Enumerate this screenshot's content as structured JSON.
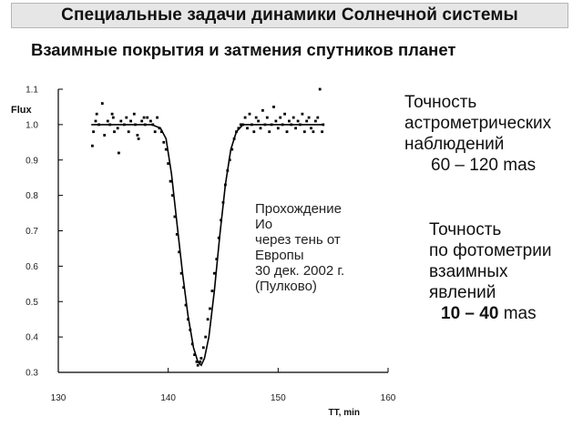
{
  "header": {
    "title": "Специальные задачи динамики Солнечной системы"
  },
  "subtitle": "Взаимные покрытия и затмения спутников планет",
  "notes": {
    "astrometry": {
      "lines": [
        "Точность",
        "астрометрических",
        "наблюдений"
      ],
      "value": "60 – 120  mas"
    },
    "photometry": {
      "lines": [
        "Точность",
        "по фотометрии",
        "взаимных",
        "явлений"
      ],
      "value": "10 – 40",
      "unit": "mas"
    }
  },
  "chart_data": {
    "type": "scatter",
    "title": "",
    "xlabel": "TT, min",
    "ylabel": "Flux",
    "xlim": [
      130,
      160
    ],
    "ylim": [
      0.3,
      1.1
    ],
    "x_ticks": [
      130,
      140,
      150,
      160
    ],
    "y_ticks": [
      0.3,
      0.4,
      0.5,
      0.6,
      0.7,
      0.8,
      0.9,
      1.0,
      1.1
    ],
    "grid": false,
    "annotation_lines": [
      "Прохождение",
      "Ио",
      "через тень от",
      "Европы",
      "30 дек. 2002 г.",
      "(Пулково)"
    ],
    "series": [
      {
        "kind": "points",
        "points": [
          [
            133.1,
            0.94
          ],
          [
            133.2,
            0.98
          ],
          [
            133.4,
            1.01
          ],
          [
            133.5,
            1.03
          ],
          [
            133.7,
            1.0
          ],
          [
            134.0,
            1.06
          ],
          [
            134.2,
            0.97
          ],
          [
            134.5,
            1.01
          ],
          [
            134.7,
            1.0
          ],
          [
            134.9,
            1.03
          ],
          [
            135.0,
            1.02
          ],
          [
            135.1,
            0.98
          ],
          [
            135.4,
            0.99
          ],
          [
            135.5,
            0.92
          ],
          [
            135.7,
            1.01
          ],
          [
            136.0,
            1.0
          ],
          [
            136.2,
            1.02
          ],
          [
            136.4,
            0.98
          ],
          [
            136.6,
            1.01
          ],
          [
            136.9,
            1.03
          ],
          [
            137.0,
            1.0
          ],
          [
            137.2,
            0.97
          ],
          [
            137.3,
            0.96
          ],
          [
            137.6,
            1.01
          ],
          [
            137.8,
            1.02
          ],
          [
            137.9,
            1.0
          ],
          [
            138.1,
            1.02
          ],
          [
            138.4,
            1.01
          ],
          [
            138.6,
            1.0
          ],
          [
            138.8,
            0.98
          ],
          [
            139.0,
            1.02
          ],
          [
            139.2,
            0.99
          ],
          [
            139.4,
            0.98
          ],
          [
            139.6,
            0.95
          ],
          [
            139.8,
            0.93
          ],
          [
            140.0,
            0.89
          ],
          [
            140.2,
            0.84
          ],
          [
            140.4,
            0.8
          ],
          [
            140.6,
            0.74
          ],
          [
            140.8,
            0.69
          ],
          [
            141.0,
            0.64
          ],
          [
            141.2,
            0.58
          ],
          [
            141.4,
            0.54
          ],
          [
            141.6,
            0.49
          ],
          [
            141.8,
            0.45
          ],
          [
            142.0,
            0.42
          ],
          [
            142.2,
            0.38
          ],
          [
            142.4,
            0.35
          ],
          [
            142.6,
            0.33
          ],
          [
            142.7,
            0.32
          ],
          [
            142.9,
            0.33
          ],
          [
            143.0,
            0.34
          ],
          [
            143.2,
            0.37
          ],
          [
            143.4,
            0.4
          ],
          [
            143.6,
            0.45
          ],
          [
            143.8,
            0.48
          ],
          [
            144.0,
            0.53
          ],
          [
            144.2,
            0.58
          ],
          [
            144.4,
            0.62
          ],
          [
            144.6,
            0.68
          ],
          [
            144.8,
            0.73
          ],
          [
            145.0,
            0.78
          ],
          [
            145.2,
            0.83
          ],
          [
            145.4,
            0.87
          ],
          [
            145.6,
            0.9
          ],
          [
            145.8,
            0.93
          ],
          [
            146.0,
            0.96
          ],
          [
            146.2,
            0.98
          ],
          [
            146.4,
            0.99
          ],
          [
            146.6,
            1.0
          ],
          [
            146.8,
            1.0
          ],
          [
            147.0,
            1.02
          ],
          [
            147.2,
            0.99
          ],
          [
            147.4,
            1.03
          ],
          [
            147.6,
            1.0
          ],
          [
            147.8,
            0.98
          ],
          [
            148.0,
            1.02
          ],
          [
            148.2,
            1.01
          ],
          [
            148.4,
            0.99
          ],
          [
            148.6,
            1.04
          ],
          [
            148.8,
            1.0
          ],
          [
            149.0,
            1.02
          ],
          [
            149.2,
            0.98
          ],
          [
            149.4,
            1.0
          ],
          [
            149.6,
            1.05
          ],
          [
            149.8,
            1.01
          ],
          [
            150.0,
            0.99
          ],
          [
            150.2,
            1.02
          ],
          [
            150.4,
            1.0
          ],
          [
            150.6,
            1.03
          ],
          [
            150.8,
            0.98
          ],
          [
            151.0,
            1.01
          ],
          [
            151.2,
            1.0
          ],
          [
            151.4,
            1.02
          ],
          [
            151.6,
            0.99
          ],
          [
            151.8,
            1.01
          ],
          [
            152.0,
            1.0
          ],
          [
            152.2,
            1.03
          ],
          [
            152.4,
            0.98
          ],
          [
            152.6,
            1.01
          ],
          [
            152.8,
            1.02
          ],
          [
            153.0,
            0.99
          ],
          [
            153.2,
            0.98
          ],
          [
            153.4,
            1.01
          ],
          [
            153.6,
            1.02
          ],
          [
            153.8,
            1.1
          ],
          [
            154.0,
            0.98
          ],
          [
            154.1,
            1.0
          ]
        ]
      },
      {
        "kind": "fit_curve",
        "points": [
          [
            133.0,
            1.0
          ],
          [
            138.5,
            1.0
          ],
          [
            139.3,
            0.99
          ],
          [
            139.8,
            0.96
          ],
          [
            140.3,
            0.86
          ],
          [
            140.8,
            0.72
          ],
          [
            141.3,
            0.58
          ],
          [
            141.8,
            0.46
          ],
          [
            142.3,
            0.37
          ],
          [
            142.7,
            0.33
          ],
          [
            143.0,
            0.32
          ],
          [
            143.3,
            0.34
          ],
          [
            143.7,
            0.4
          ],
          [
            144.2,
            0.53
          ],
          [
            144.7,
            0.69
          ],
          [
            145.2,
            0.83
          ],
          [
            145.7,
            0.93
          ],
          [
            146.2,
            0.98
          ],
          [
            146.8,
            1.0
          ],
          [
            154.0,
            1.0
          ]
        ]
      }
    ]
  }
}
